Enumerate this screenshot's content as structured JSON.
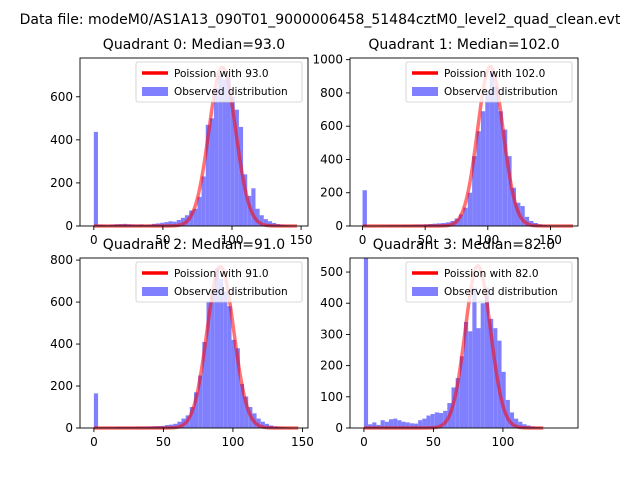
{
  "figure": {
    "suptitle": "Data file: modeM0/AS1A13_090T01_9000006458_51484cztM0_level2_quad_clean.evt"
  },
  "colors": {
    "observed_fill": "#8080ff",
    "poisson_line": "#ff0000"
  },
  "legend": {
    "observed_label": "Observed distribution",
    "placement": "upper right"
  },
  "chart_data": [
    {
      "type": "bar",
      "title": "Quadrant 0: Median=93.0",
      "poisson_label": "Poission with 93.0",
      "median": 93.0,
      "xlim": [
        -10,
        155
      ],
      "ylim": [
        0,
        780
      ],
      "xticks": [
        0,
        50,
        100,
        150
      ],
      "yticks": [
        0,
        200,
        400,
        600
      ],
      "bin_width": 3,
      "bins_x": [
        0,
        3,
        6,
        9,
        12,
        15,
        18,
        21,
        24,
        27,
        30,
        33,
        36,
        39,
        42,
        45,
        48,
        51,
        54,
        57,
        60,
        63,
        66,
        69,
        72,
        75,
        78,
        81,
        84,
        87,
        90,
        93,
        96,
        99,
        102,
        105,
        108,
        111,
        114,
        117,
        120,
        123,
        126,
        129,
        132,
        135,
        138,
        141,
        144
      ],
      "counts": [
        437,
        6,
        5,
        4,
        6,
        8,
        9,
        10,
        8,
        7,
        6,
        7,
        5,
        6,
        10,
        12,
        15,
        18,
        22,
        20,
        28,
        38,
        50,
        72,
        80,
        135,
        230,
        470,
        500,
        640,
        700,
        680,
        690,
        600,
        540,
        460,
        240,
        140,
        175,
        80,
        50,
        32,
        22,
        14,
        9,
        6,
        4,
        3,
        2
      ],
      "poisson_peak": 737
    },
    {
      "type": "bar",
      "title": "Quadrant 1: Median=102.0",
      "poisson_label": "Poission with 102.0",
      "median": 102.0,
      "xlim": [
        -10,
        172
      ],
      "ylim": [
        0,
        1010
      ],
      "xticks": [
        0,
        50,
        100,
        150
      ],
      "yticks": [
        0,
        200,
        400,
        600,
        800,
        1000
      ],
      "bin_width": 3.5,
      "bins_x": [
        0,
        3.5,
        7,
        10.5,
        14,
        17.5,
        21,
        24.5,
        28,
        31.5,
        35,
        38.5,
        42,
        45.5,
        49,
        52.5,
        56,
        59.5,
        63,
        66.5,
        70,
        73.5,
        77,
        80.5,
        84,
        87.5,
        91,
        94.5,
        98,
        101.5,
        105,
        108.5,
        112,
        115.5,
        119,
        122.5,
        126,
        129.5,
        133,
        136.5,
        140,
        143.5,
        147,
        150.5,
        154,
        157.5,
        161,
        164.5
      ],
      "counts": [
        215,
        3,
        3,
        3,
        4,
        4,
        5,
        5,
        5,
        6,
        6,
        7,
        8,
        8,
        10,
        12,
        14,
        16,
        18,
        22,
        30,
        45,
        70,
        110,
        200,
        420,
        570,
        690,
        800,
        930,
        840,
        690,
        580,
        420,
        230,
        140,
        120,
        55,
        30,
        18,
        10,
        6,
        4,
        3,
        2,
        1,
        1,
        1
      ],
      "poisson_peak": 960
    },
    {
      "type": "bar",
      "title": "Quadrant 2: Median=91.0",
      "poisson_label": "Poission with 91.0",
      "median": 91.0,
      "xlim": [
        -10,
        154
      ],
      "ylim": [
        0,
        810
      ],
      "xticks": [
        0,
        50,
        100,
        150
      ],
      "yticks": [
        0,
        200,
        400,
        600,
        800
      ],
      "bin_width": 3,
      "bins_x": [
        0,
        3,
        6,
        9,
        12,
        15,
        18,
        21,
        24,
        27,
        30,
        33,
        36,
        39,
        42,
        45,
        48,
        51,
        54,
        57,
        60,
        63,
        66,
        69,
        72,
        75,
        78,
        81,
        84,
        87,
        90,
        93,
        96,
        99,
        102,
        105,
        108,
        111,
        114,
        117,
        120,
        123,
        126,
        129,
        132,
        135,
        138,
        141,
        144
      ],
      "counts": [
        165,
        4,
        4,
        4,
        4,
        5,
        5,
        5,
        5,
        5,
        6,
        6,
        6,
        7,
        8,
        9,
        10,
        14,
        16,
        20,
        30,
        45,
        60,
        100,
        170,
        250,
        410,
        600,
        660,
        760,
        710,
        650,
        580,
        420,
        380,
        210,
        150,
        100,
        70,
        45,
        30,
        20,
        12,
        8,
        6,
        4,
        3,
        2,
        1
      ],
      "poisson_peak": 770
    },
    {
      "type": "bar",
      "title": "Quadrant 3: Median=82.0",
      "poisson_label": "Poission with 82.0",
      "median": 82.0,
      "xlim": [
        -10,
        154
      ],
      "ylim": [
        0,
        545
      ],
      "xticks": [
        0,
        50,
        100
      ],
      "yticks": [
        0,
        100,
        200,
        300,
        400,
        500
      ],
      "bin_width": 3,
      "bins_x": [
        0,
        3,
        6,
        9,
        12,
        15,
        18,
        21,
        24,
        27,
        30,
        33,
        36,
        39,
        42,
        45,
        48,
        51,
        54,
        57,
        60,
        63,
        66,
        69,
        72,
        75,
        78,
        81,
        84,
        87,
        90,
        93,
        96,
        99,
        102,
        105,
        108,
        111,
        114,
        117,
        120,
        123,
        126
      ],
      "counts": [
        545,
        12,
        18,
        10,
        25,
        20,
        28,
        30,
        25,
        20,
        18,
        15,
        14,
        25,
        30,
        40,
        45,
        50,
        48,
        55,
        80,
        130,
        160,
        230,
        340,
        310,
        450,
        320,
        400,
        450,
        350,
        320,
        280,
        180,
        90,
        50,
        30,
        20,
        12,
        8,
        5,
        3,
        2
      ],
      "poisson_peak": 520
    }
  ]
}
